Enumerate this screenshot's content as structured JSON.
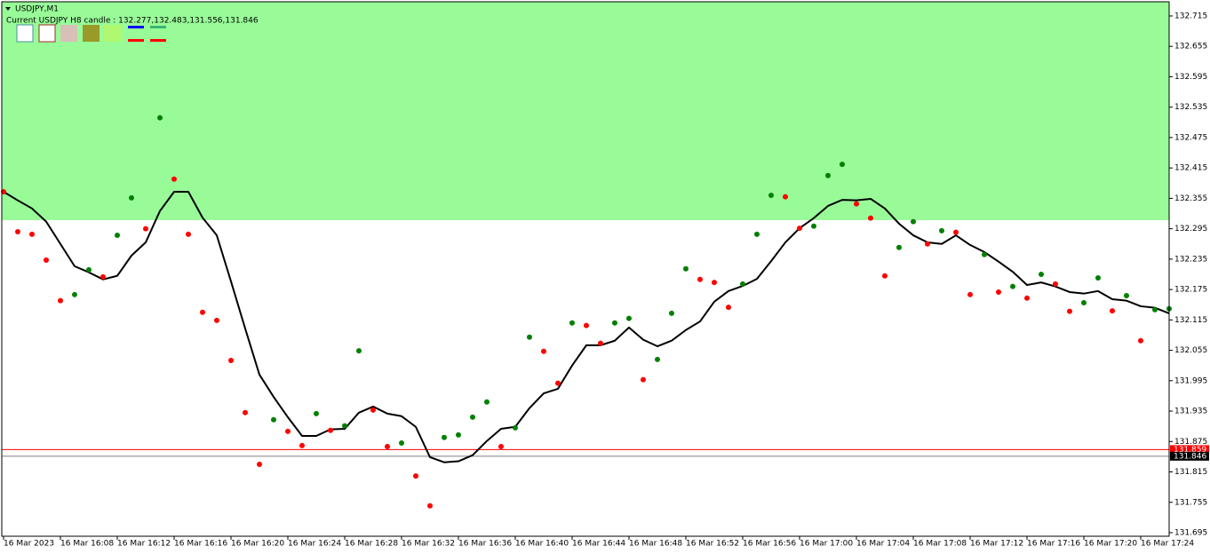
{
  "chart_data": {
    "type": "line",
    "title": "USDJPY,M1",
    "subtitle": "Current USDJPY H8 candle : 132.277,132.483,131.556,131.846",
    "categories": [
      "16 Mar 2023",
      null,
      null,
      null,
      "16 Mar 16:08",
      null,
      null,
      null,
      "16 Mar 16:12",
      null,
      null,
      null,
      "16 Mar 16:16",
      null,
      null,
      null,
      "16 Mar 16:20",
      null,
      null,
      null,
      "16 Mar 16:24",
      null,
      null,
      null,
      "16 Mar 16:28",
      null,
      null,
      null,
      "16 Mar 16:32",
      null,
      null,
      null,
      "16 Mar 16:36",
      null,
      null,
      null,
      "16 Mar 16:40",
      null,
      null,
      null,
      "16 Mar 16:44",
      null,
      null,
      null,
      "16 Mar 16:48",
      null,
      null,
      null,
      "16 Mar 16:52",
      null,
      null,
      null,
      "16 Mar 16:56",
      null,
      null,
      null,
      "16 Mar 17:00",
      null,
      null,
      null,
      "16 Mar 17:04",
      null,
      null,
      null,
      "16 Mar 17:08",
      null,
      null,
      null,
      "16 Mar 17:12",
      null,
      null,
      null,
      "16 Mar 17:16",
      null,
      null,
      null,
      "16 Mar 17:20",
      null,
      null,
      null,
      "16 Mar 17:24",
      null,
      null
    ],
    "series": [
      {
        "type": "line",
        "color": "#000000",
        "values": [
          132.368,
          132.351,
          132.335,
          132.309,
          132.265,
          132.221,
          132.209,
          132.195,
          132.202,
          132.242,
          132.268,
          132.33,
          132.368,
          132.368,
          132.317,
          132.282,
          132.191,
          132.098,
          132.007,
          131.963,
          131.923,
          131.886,
          131.886,
          131.899,
          131.9,
          131.932,
          131.944,
          131.93,
          131.925,
          131.904,
          131.844,
          131.834,
          131.836,
          131.848,
          131.876,
          131.9,
          131.904,
          131.941,
          131.97,
          131.979,
          132.025,
          132.065,
          132.065,
          132.074,
          132.1,
          132.076,
          132.063,
          132.074,
          132.095,
          132.112,
          132.151,
          132.172,
          132.182,
          132.196,
          132.231,
          132.268,
          132.296,
          132.316,
          132.34,
          132.352,
          132.351,
          132.354,
          132.335,
          132.305,
          132.282,
          132.268,
          132.265,
          132.282,
          132.263,
          132.249,
          132.23,
          132.21,
          132.184,
          132.189,
          132.181,
          132.17,
          132.167,
          132.172,
          132.156,
          132.153,
          132.142,
          132.139,
          132.128
        ]
      },
      {
        "type": "scatter",
        "color": "#008000",
        "values": [
          null,
          null,
          null,
          null,
          null,
          132.165,
          132.214,
          null,
          132.282,
          132.356,
          null,
          132.514,
          null,
          null,
          null,
          null,
          null,
          null,
          null,
          131.918,
          null,
          null,
          131.93,
          null,
          131.906,
          132.054,
          null,
          null,
          131.872,
          null,
          null,
          131.883,
          131.888,
          131.923,
          131.953,
          null,
          131.902,
          132.081,
          null,
          null,
          132.109,
          null,
          null,
          132.109,
          132.118,
          null,
          132.037,
          132.128,
          132.216,
          null,
          null,
          null,
          132.186,
          132.284,
          132.361,
          null,
          null,
          132.3,
          132.4,
          132.422,
          null,
          null,
          null,
          132.258,
          132.309,
          null,
          132.291,
          null,
          null,
          132.244,
          null,
          132.181,
          null,
          132.205,
          null,
          null,
          132.149,
          132.198,
          null,
          132.163,
          null,
          132.135,
          132.137
        ]
      },
      {
        "type": "scatter",
        "color": "#ff0000",
        "values": [
          132.368,
          132.289,
          132.284,
          132.233,
          132.153,
          null,
          null,
          132.2,
          null,
          null,
          132.295,
          null,
          132.393,
          132.284,
          132.13,
          132.114,
          132.035,
          131.932,
          131.83,
          null,
          131.895,
          131.867,
          null,
          131.897,
          null,
          null,
          131.937,
          131.865,
          null,
          131.807,
          131.748,
          null,
          null,
          null,
          null,
          131.865,
          null,
          null,
          132.053,
          131.99,
          null,
          132.104,
          132.069,
          null,
          null,
          131.997,
          null,
          null,
          null,
          132.195,
          132.189,
          132.14,
          null,
          null,
          null,
          132.358,
          132.296,
          null,
          null,
          null,
          132.344,
          132.316,
          132.202,
          null,
          null,
          132.265,
          null,
          132.288,
          132.165,
          null,
          132.17,
          null,
          132.158,
          null,
          132.186,
          132.132,
          null,
          null,
          132.133,
          null,
          132.074,
          null,
          null
        ]
      }
    ],
    "ylim": [
      131.688,
      132.743
    ],
    "yticks": [
      132.715,
      132.655,
      132.595,
      132.535,
      132.475,
      132.415,
      132.355,
      132.295,
      132.235,
      132.175,
      132.115,
      132.055,
      131.995,
      131.935,
      131.875,
      131.815,
      131.755,
      131.695
    ],
    "zones": [
      {
        "from": 132.312,
        "to": 132.743,
        "color": "#98fb98"
      }
    ],
    "price_lines": [
      {
        "value": 131.859,
        "color": "#ff0000",
        "label_color": "#ff0000"
      },
      {
        "value": 131.846,
        "color": "#808080",
        "label_color": "#000000"
      }
    ]
  }
}
